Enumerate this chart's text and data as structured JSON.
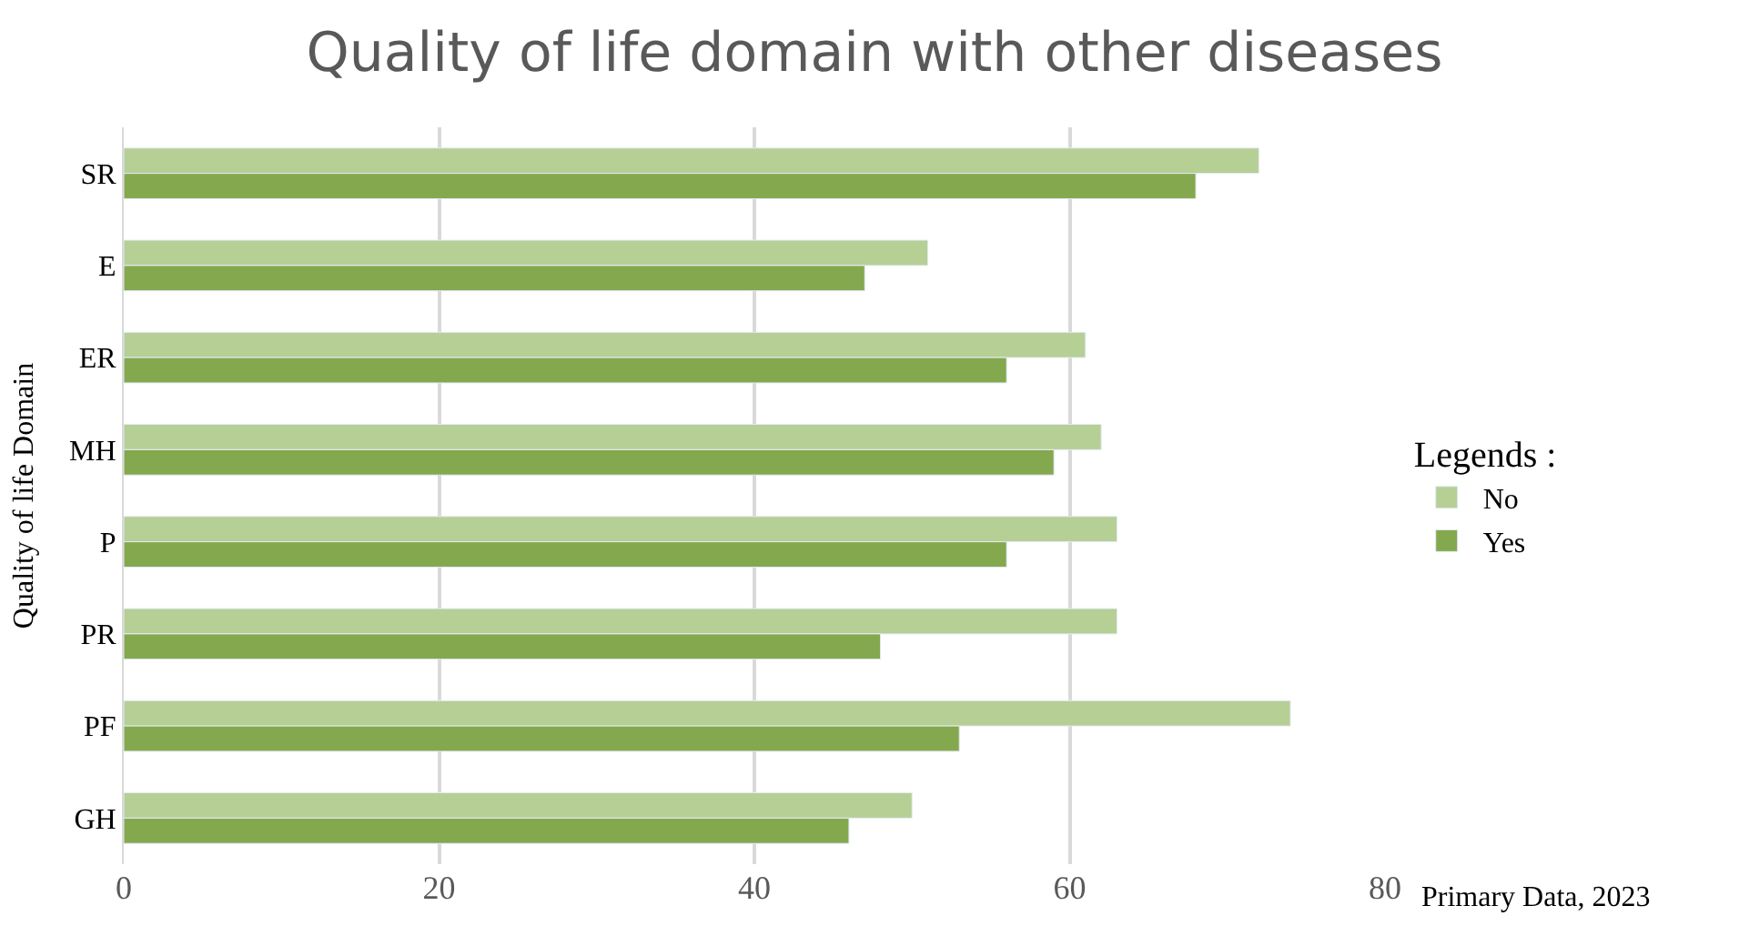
{
  "chart_data": {
    "type": "bar",
    "orientation": "horizontal",
    "title": "Quality of life domain with other diseases",
    "ylabel": "Quality of life Domain",
    "legend_title": "Legends :",
    "categories": [
      "SR",
      "E",
      "ER",
      "MH",
      "P",
      "PR",
      "PF",
      "GH"
    ],
    "series": [
      {
        "name": "No",
        "color": "#b5cf95",
        "values": [
          72,
          51,
          61,
          62,
          63,
          63,
          74,
          50
        ]
      },
      {
        "name": "Yes",
        "color": "#84a84e",
        "values": [
          68,
          47,
          56,
          59,
          56,
          48,
          53,
          46
        ]
      }
    ],
    "xlim": [
      0,
      80
    ],
    "xticks": [
      0,
      20,
      40,
      60,
      80
    ],
    "grid": "x",
    "legend": "right",
    "annotations": [
      "Primary Data, 2023"
    ]
  }
}
